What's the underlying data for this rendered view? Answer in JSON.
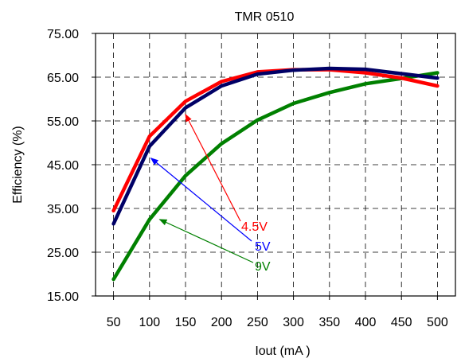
{
  "chart_data": {
    "type": "line",
    "title": "TMR 0510",
    "xlabel": "Iout (mA )",
    "ylabel": "Efficiency (%)",
    "x": [
      50,
      100,
      150,
      200,
      250,
      300,
      350,
      400,
      450,
      500
    ],
    "x_tick_labels": [
      "50",
      "100",
      "150",
      "200",
      "250",
      "300",
      "350",
      "400",
      "450",
      "500"
    ],
    "y_ticks": [
      15,
      25,
      35,
      45,
      55,
      65,
      75
    ],
    "y_tick_labels": [
      "15.00",
      "25.00",
      "35.00",
      "45.00",
      "55.00",
      "65.00",
      "75.00"
    ],
    "xlim": [
      25,
      525
    ],
    "ylim": [
      15,
      75
    ],
    "grid": true,
    "grid_style": "dashed",
    "series": [
      {
        "name": "4.5V",
        "color": "#ff0000",
        "values": [
          34.5,
          51.5,
          59.5,
          64.0,
          66.2,
          66.7,
          66.7,
          66.0,
          64.8,
          63.0
        ]
      },
      {
        "name": "5V",
        "color": "#000066",
        "values": [
          31.5,
          49.2,
          58.0,
          63.0,
          65.7,
          66.6,
          67.0,
          66.8,
          65.8,
          64.8
        ]
      },
      {
        "name": "9V",
        "color": "#008000",
        "values": [
          18.8,
          32.5,
          42.5,
          49.8,
          55.2,
          59.0,
          61.5,
          63.5,
          64.7,
          66.0
        ]
      }
    ],
    "annotations": [
      {
        "text": "4.5V",
        "color": "#ff0000",
        "points_to_x": 150,
        "points_to_y": 56.5
      },
      {
        "text": "5V",
        "color": "#0000ff",
        "points_to_x": 102,
        "points_to_y": 46.5
      },
      {
        "text": "9V",
        "color": "#008000",
        "points_to_x": 114,
        "points_to_y": 32.5
      }
    ]
  }
}
